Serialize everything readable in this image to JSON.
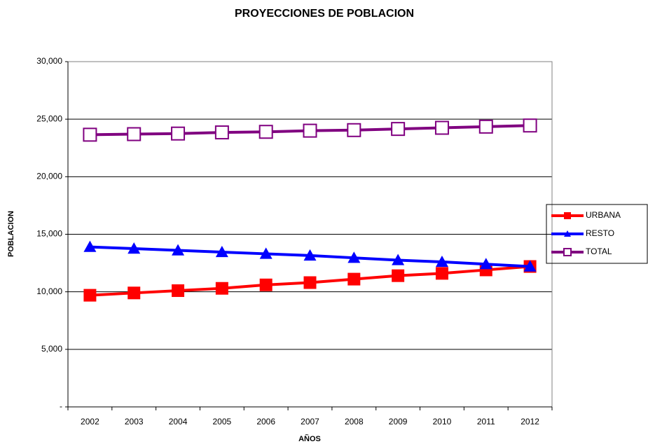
{
  "chart_data": {
    "type": "line",
    "title": "PROYECCIONES DE POBLACION",
    "xlabel": "AÑOS",
    "ylabel": "POBLACION",
    "categories": [
      "2002",
      "2003",
      "2004",
      "2005",
      "2006",
      "2007",
      "2008",
      "2009",
      "2010",
      "2011",
      "2012"
    ],
    "series": [
      {
        "name": "URBANA",
        "color": "#ff0000",
        "marker": "square",
        "values": [
          9700,
          9900,
          10100,
          10300,
          10600,
          10800,
          11100,
          11400,
          11600,
          11900,
          12200
        ]
      },
      {
        "name": "RESTO",
        "color": "#0000ff",
        "marker": "triangle",
        "values": [
          13900,
          13750,
          13600,
          13450,
          13300,
          13150,
          12950,
          12750,
          12600,
          12400,
          12200
        ]
      },
      {
        "name": "TOTAL",
        "color": "#800080",
        "marker": "open-square",
        "values": [
          23650,
          23700,
          23750,
          23850,
          23900,
          24000,
          24050,
          24150,
          24250,
          24350,
          24450
        ]
      }
    ],
    "ylim": [
      0,
      30000
    ],
    "yticks": [
      {
        "value": 0,
        "label": "-"
      },
      {
        "value": 5000,
        "label": "5,000"
      },
      {
        "value": 10000,
        "label": "10,000"
      },
      {
        "value": 15000,
        "label": "15,000"
      },
      {
        "value": 20000,
        "label": "20,000"
      },
      {
        "value": 25000,
        "label": "25,000"
      },
      {
        "value": 30000,
        "label": "30,000"
      }
    ],
    "grid": true,
    "legend": "right"
  }
}
